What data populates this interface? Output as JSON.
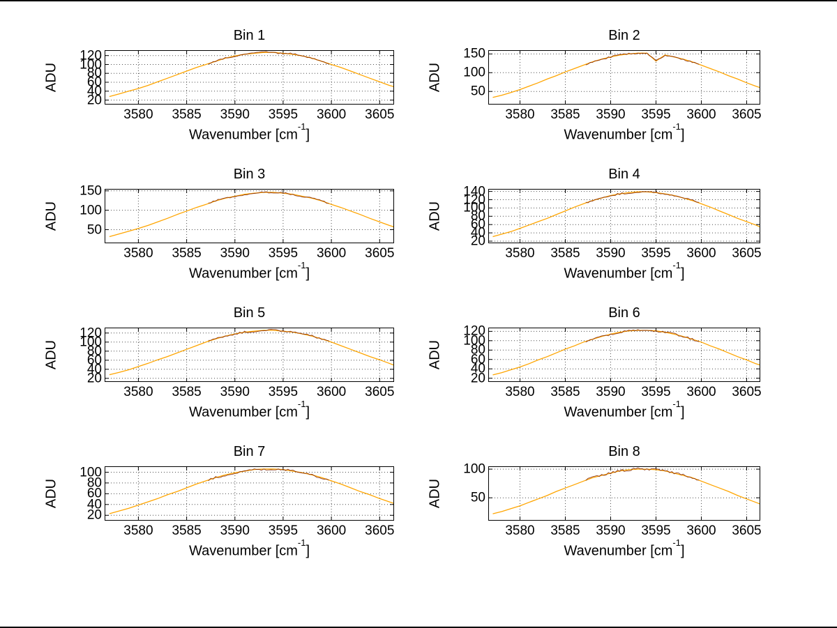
{
  "figure": {
    "background": "#ffffff",
    "line_color": "#FFA500",
    "noise_color": "#7B1E00",
    "grid_color": "#4d4d4d",
    "axis_color": "#000000",
    "ylabel": "ADU",
    "xlabel_pre": "Wavenumber [cm",
    "xlabel_sup": "-1",
    "xlabel_post": "]"
  },
  "chart_data": [
    {
      "type": "line",
      "title": "Bin 1",
      "xlabel": "Wavenumber [cm^-1]",
      "ylabel": "ADU",
      "grid": true,
      "xlim": [
        3576.5,
        3606.5
      ],
      "ylim": [
        10,
        132
      ],
      "xticks": [
        3580,
        3585,
        3590,
        3595,
        3600,
        3605
      ],
      "yticks": [
        20,
        40,
        60,
        80,
        100,
        120
      ],
      "x": [
        3577,
        3578,
        3579,
        3580,
        3581,
        3582,
        3583,
        3584,
        3585,
        3586,
        3587,
        3588,
        3589,
        3590,
        3591,
        3592,
        3593,
        3594,
        3595,
        3596,
        3597,
        3598,
        3599,
        3600,
        3601,
        3602,
        3603,
        3604,
        3605,
        3606,
        3606.5
      ],
      "series": [
        {
          "name": "spectrum",
          "color": "#FFA500",
          "values": [
            28,
            34,
            40,
            46,
            53,
            61,
            69,
            77,
            85,
            93,
            100,
            107,
            114,
            119,
            123,
            125,
            127,
            127,
            125,
            123,
            119,
            114,
            107,
            100,
            93,
            85,
            77,
            69,
            61,
            53,
            50
          ]
        }
      ]
    },
    {
      "type": "line",
      "title": "Bin 2",
      "xlabel": "Wavenumber [cm^-1]",
      "ylabel": "ADU",
      "grid": true,
      "xlim": [
        3576.5,
        3606.5
      ],
      "ylim": [
        15,
        160
      ],
      "xticks": [
        3580,
        3585,
        3590,
        3595,
        3600,
        3605
      ],
      "yticks": [
        50,
        100,
        150
      ],
      "x": [
        3577,
        3578,
        3579,
        3580,
        3581,
        3582,
        3583,
        3584,
        3585,
        3586,
        3587,
        3588,
        3589,
        3590,
        3591,
        3592,
        3593,
        3594,
        3595,
        3596,
        3597,
        3598,
        3599,
        3600,
        3601,
        3602,
        3603,
        3604,
        3605,
        3606,
        3606.5
      ],
      "series": [
        {
          "name": "spectrum",
          "color": "#FFA500",
          "values": [
            34,
            40,
            47,
            55,
            64,
            73,
            83,
            92,
            102,
            111,
            120,
            129,
            136,
            142,
            147,
            150,
            152,
            152,
            131,
            147,
            142,
            136,
            129,
            120,
            111,
            102,
            92,
            83,
            73,
            64,
            60
          ]
        }
      ]
    },
    {
      "type": "line",
      "title": "Bin 3",
      "xlabel": "Wavenumber [cm^-1]",
      "ylabel": "ADU",
      "grid": true,
      "xlim": [
        3576.5,
        3606.5
      ],
      "ylim": [
        15,
        155
      ],
      "xticks": [
        3580,
        3585,
        3590,
        3595,
        3600,
        3605
      ],
      "yticks": [
        50,
        100,
        150
      ],
      "x": [
        3577,
        3578,
        3579,
        3580,
        3581,
        3582,
        3583,
        3584,
        3585,
        3586,
        3587,
        3588,
        3589,
        3590,
        3591,
        3592,
        3593,
        3594,
        3595,
        3596,
        3597,
        3598,
        3599,
        3600,
        3601,
        3602,
        3603,
        3604,
        3605,
        3606,
        3606.5
      ],
      "series": [
        {
          "name": "spectrum",
          "color": "#FFA500",
          "values": [
            32,
            39,
            46,
            53,
            61,
            70,
            79,
            89,
            98,
            107,
            115,
            124,
            131,
            136,
            141,
            144,
            146,
            146,
            144,
            141,
            136,
            131,
            124,
            115,
            107,
            98,
            89,
            79,
            70,
            61,
            57
          ]
        }
      ]
    },
    {
      "type": "line",
      "title": "Bin 4",
      "xlabel": "Wavenumber [cm^-1]",
      "ylabel": "ADU",
      "grid": true,
      "xlim": [
        3576.5,
        3606.5
      ],
      "ylim": [
        15,
        146
      ],
      "xticks": [
        3580,
        3585,
        3590,
        3595,
        3600,
        3605
      ],
      "yticks": [
        20,
        40,
        60,
        80,
        100,
        120,
        140
      ],
      "x": [
        3577,
        3578,
        3579,
        3580,
        3581,
        3582,
        3583,
        3584,
        3585,
        3586,
        3587,
        3588,
        3589,
        3590,
        3591,
        3592,
        3593,
        3594,
        3595,
        3596,
        3597,
        3598,
        3599,
        3600,
        3601,
        3602,
        3603,
        3604,
        3605,
        3606,
        3606.5
      ],
      "series": [
        {
          "name": "spectrum",
          "color": "#FFA500",
          "values": [
            31,
            37,
            43,
            51,
            59,
            67,
            75,
            84,
            93,
            102,
            110,
            118,
            124,
            130,
            134,
            137,
            139,
            139,
            137,
            134,
            130,
            124,
            118,
            110,
            102,
            93,
            84,
            75,
            67,
            59,
            54
          ]
        }
      ]
    },
    {
      "type": "line",
      "title": "Bin 5",
      "xlabel": "Wavenumber [cm^-1]",
      "ylabel": "ADU",
      "grid": true,
      "xlim": [
        3576.5,
        3606.5
      ],
      "ylim": [
        12,
        132
      ],
      "xticks": [
        3580,
        3585,
        3590,
        3595,
        3600,
        3605
      ],
      "yticks": [
        20,
        40,
        60,
        80,
        100,
        120
      ],
      "x": [
        3577,
        3578,
        3579,
        3580,
        3581,
        3582,
        3583,
        3584,
        3585,
        3586,
        3587,
        3588,
        3589,
        3590,
        3591,
        3592,
        3593,
        3594,
        3595,
        3596,
        3597,
        3598,
        3599,
        3600,
        3601,
        3602,
        3603,
        3604,
        3605,
        3606,
        3606.5
      ],
      "series": [
        {
          "name": "spectrum",
          "color": "#FFA500",
          "values": [
            28,
            33,
            39,
            46,
            53,
            61,
            68,
            76,
            84,
            92,
            100,
            107,
            113,
            118,
            122,
            124,
            126,
            126,
            124,
            122,
            118,
            113,
            107,
            100,
            92,
            84,
            76,
            68,
            61,
            53,
            49
          ]
        }
      ]
    },
    {
      "type": "line",
      "title": "Bin 6",
      "xlabel": "Wavenumber [cm^-1]",
      "ylabel": "ADU",
      "grid": true,
      "xlim": [
        3576.5,
        3606.5
      ],
      "ylim": [
        12,
        128
      ],
      "xticks": [
        3580,
        3585,
        3590,
        3595,
        3600,
        3605
      ],
      "yticks": [
        20,
        40,
        60,
        80,
        100,
        120
      ],
      "x": [
        3577,
        3578,
        3579,
        3580,
        3581,
        3582,
        3583,
        3584,
        3585,
        3586,
        3587,
        3588,
        3589,
        3590,
        3591,
        3592,
        3593,
        3594,
        3595,
        3596,
        3597,
        3598,
        3599,
        3600,
        3601,
        3602,
        3603,
        3604,
        3605,
        3606,
        3606.5
      ],
      "series": [
        {
          "name": "spectrum",
          "color": "#FFA500",
          "values": [
            27,
            32,
            38,
            44,
            51,
            59,
            66,
            74,
            82,
            89,
            97,
            103,
            109,
            114,
            118,
            121,
            122,
            122,
            121,
            118,
            114,
            109,
            103,
            97,
            89,
            82,
            74,
            66,
            59,
            51,
            48
          ]
        }
      ]
    },
    {
      "type": "line",
      "title": "Bin 7",
      "xlabel": "Wavenumber [cm^-1]",
      "ylabel": "ADU",
      "grid": true,
      "xlim": [
        3576.5,
        3606.5
      ],
      "ylim": [
        10,
        111
      ],
      "xticks": [
        3580,
        3585,
        3590,
        3595,
        3600,
        3605
      ],
      "yticks": [
        20,
        40,
        60,
        80,
        100
      ],
      "x": [
        3577,
        3578,
        3579,
        3580,
        3581,
        3582,
        3583,
        3584,
        3585,
        3586,
        3587,
        3588,
        3589,
        3590,
        3591,
        3592,
        3593,
        3594,
        3595,
        3596,
        3597,
        3598,
        3599,
        3600,
        3601,
        3602,
        3603,
        3604,
        3605,
        3606,
        3606.5
      ],
      "series": [
        {
          "name": "spectrum",
          "color": "#FFA500",
          "values": [
            23,
            28,
            33,
            39,
            45,
            51,
            58,
            64,
            71,
            78,
            84,
            90,
            95,
            99,
            102,
            105,
            106,
            106,
            105,
            102,
            99,
            95,
            90,
            84,
            78,
            71,
            64,
            58,
            51,
            45,
            42
          ]
        }
      ]
    },
    {
      "type": "line",
      "title": "Bin 8",
      "xlabel": "Wavenumber [cm^-1]",
      "ylabel": "ADU",
      "grid": true,
      "xlim": [
        3576.5,
        3606.5
      ],
      "ylim": [
        10,
        105
      ],
      "xticks": [
        3580,
        3585,
        3590,
        3595,
        3600,
        3605
      ],
      "yticks": [
        50,
        100
      ],
      "x": [
        3577,
        3578,
        3579,
        3580,
        3581,
        3582,
        3583,
        3584,
        3585,
        3586,
        3587,
        3588,
        3589,
        3590,
        3591,
        3592,
        3593,
        3594,
        3595,
        3596,
        3597,
        3598,
        3599,
        3600,
        3601,
        3602,
        3603,
        3604,
        3605,
        3606,
        3606.5
      ],
      "series": [
        {
          "name": "spectrum",
          "color": "#FFA500",
          "values": [
            22,
            26,
            31,
            36,
            42,
            48,
            54,
            61,
            67,
            73,
            79,
            85,
            89,
            93,
            97,
            99,
            100,
            100,
            99,
            97,
            93,
            89,
            85,
            79,
            73,
            67,
            61,
            54,
            48,
            42,
            39
          ]
        }
      ]
    }
  ]
}
